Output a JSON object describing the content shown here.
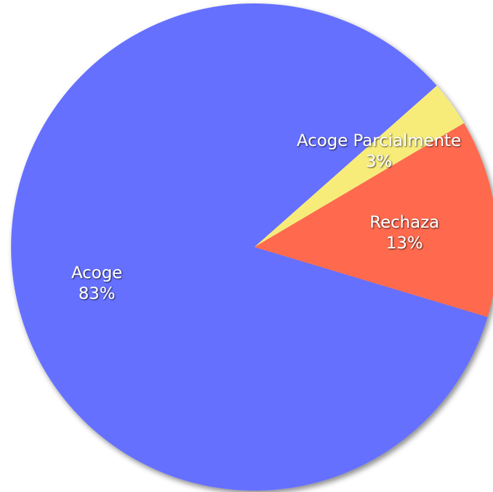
{
  "chart_data": {
    "type": "pie",
    "categories": [
      "Acoge",
      "Acoge Parcialmente",
      "Rechaza"
    ],
    "values": [
      83,
      3,
      13
    ],
    "value_labels": [
      "83%",
      "3%",
      "13%"
    ],
    "colors": [
      "#6670ff",
      "#f7ec7a",
      "#ff6a50"
    ]
  }
}
